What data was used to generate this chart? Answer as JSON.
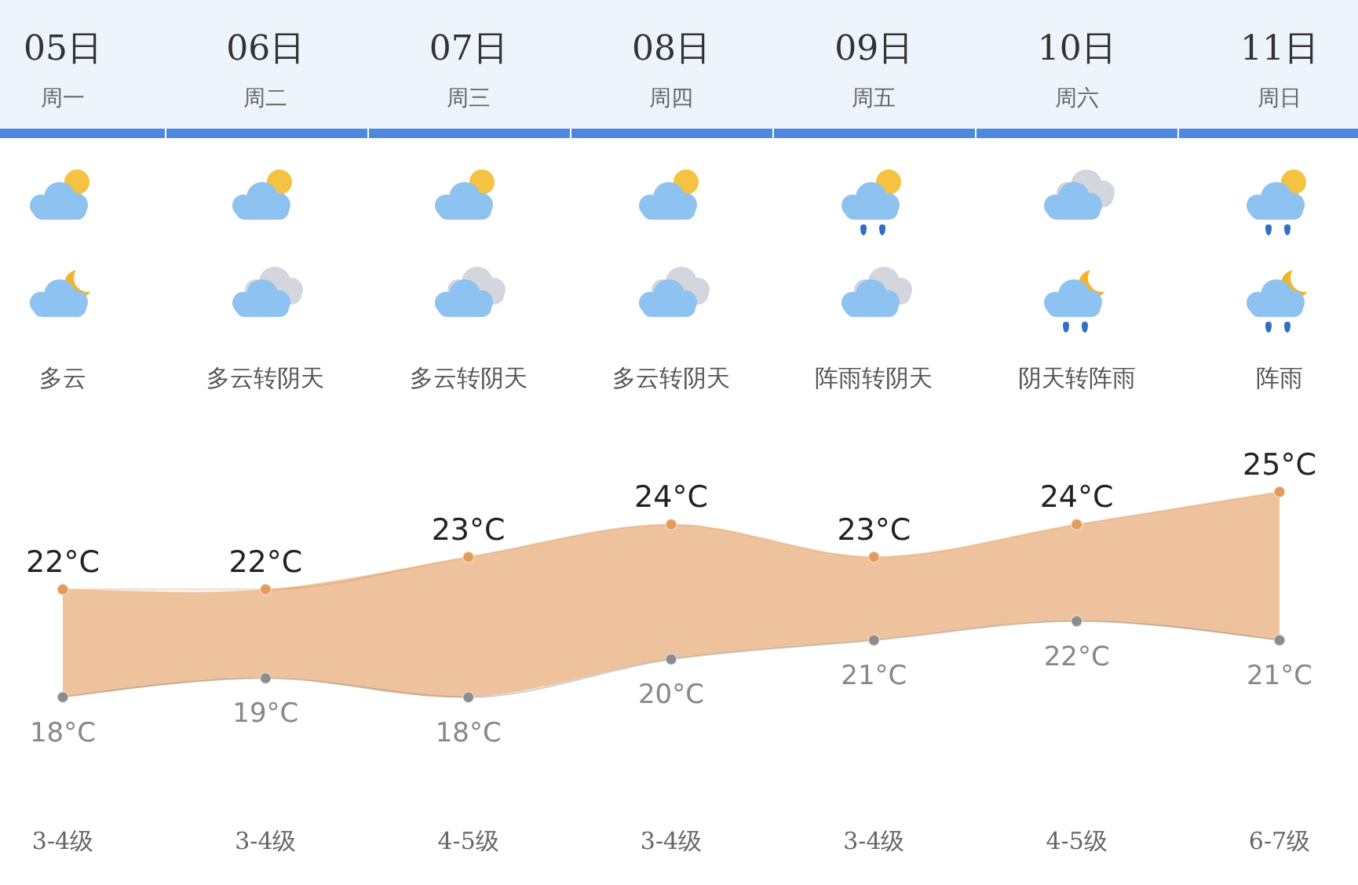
{
  "chart_data": {
    "type": "area",
    "categories": [
      "05日",
      "06日",
      "07日",
      "08日",
      "09日",
      "10日",
      "11日"
    ],
    "series": [
      {
        "color": "#e39a5a",
        "values": [
          22,
          22,
          23,
          24,
          23,
          24,
          25
        ],
        "value_labels": [
          "22°C",
          "22°C",
          "23°C",
          "24°C",
          "23°C",
          "24°C",
          "25°C"
        ]
      },
      {
        "type": "line",
        "color": "#8c8c8c",
        "axis": "y2",
        "values": [
          18,
          19,
          18,
          20,
          21,
          22,
          21
        ],
        "value_labels": [
          "18°C",
          "19°C",
          "18°C",
          "20°C",
          "21°C",
          "22°C",
          "21°C"
        ]
      }
    ],
    "tick_labels": false,
    "marker": "circle",
    "annotations": [
      "周一",
      "周二",
      "周三",
      "周四",
      "周五",
      "周六",
      "周日",
      "多云",
      "多云转阴天",
      "多云转阴天",
      "多云转阴天",
      "阵雨转阴天",
      "阴天转阵雨",
      "阵雨",
      "3-4级",
      "3-4级",
      "4-5级",
      "3-4级",
      "3-4级",
      "4-5级",
      "6-7级"
    ]
  }
}
